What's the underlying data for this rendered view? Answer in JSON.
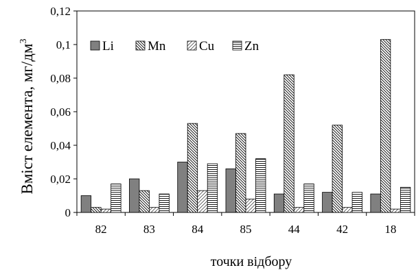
{
  "chart_data": {
    "type": "bar",
    "title": "",
    "xlabel": "точки відбору",
    "ylabel_main": "Вміст елемента, мг/дм",
    "ylabel_sup": "3",
    "ylim": [
      0,
      0.12
    ],
    "yticks": [
      "0",
      "0,02",
      "0,04",
      "0,06",
      "0,08",
      "0,1",
      "0,12"
    ],
    "grid": false,
    "legend_position": "top-left",
    "categories": [
      "82",
      "83",
      "84",
      "85",
      "44",
      "42",
      "18"
    ],
    "series": [
      {
        "name": "Li",
        "pattern": "solid-gray",
        "values": [
          0.01,
          0.02,
          0.03,
          0.026,
          0.011,
          0.012,
          0.011
        ]
      },
      {
        "name": "Mn",
        "pattern": "dense-diagonal-hatch",
        "values": [
          0.003,
          0.013,
          0.053,
          0.047,
          0.082,
          0.052,
          0.103
        ]
      },
      {
        "name": "Cu",
        "pattern": "sparse-diagonal-hatch",
        "values": [
          0.002,
          0.003,
          0.013,
          0.008,
          0.003,
          0.003,
          0.002
        ]
      },
      {
        "name": "Zn",
        "pattern": "horizontal-lines",
        "values": [
          0.017,
          0.011,
          0.029,
          0.032,
          0.017,
          0.012,
          0.015
        ]
      }
    ],
    "colors": {
      "li_fill": "#808080",
      "stroke": "#000000",
      "background": "#ffffff"
    }
  }
}
